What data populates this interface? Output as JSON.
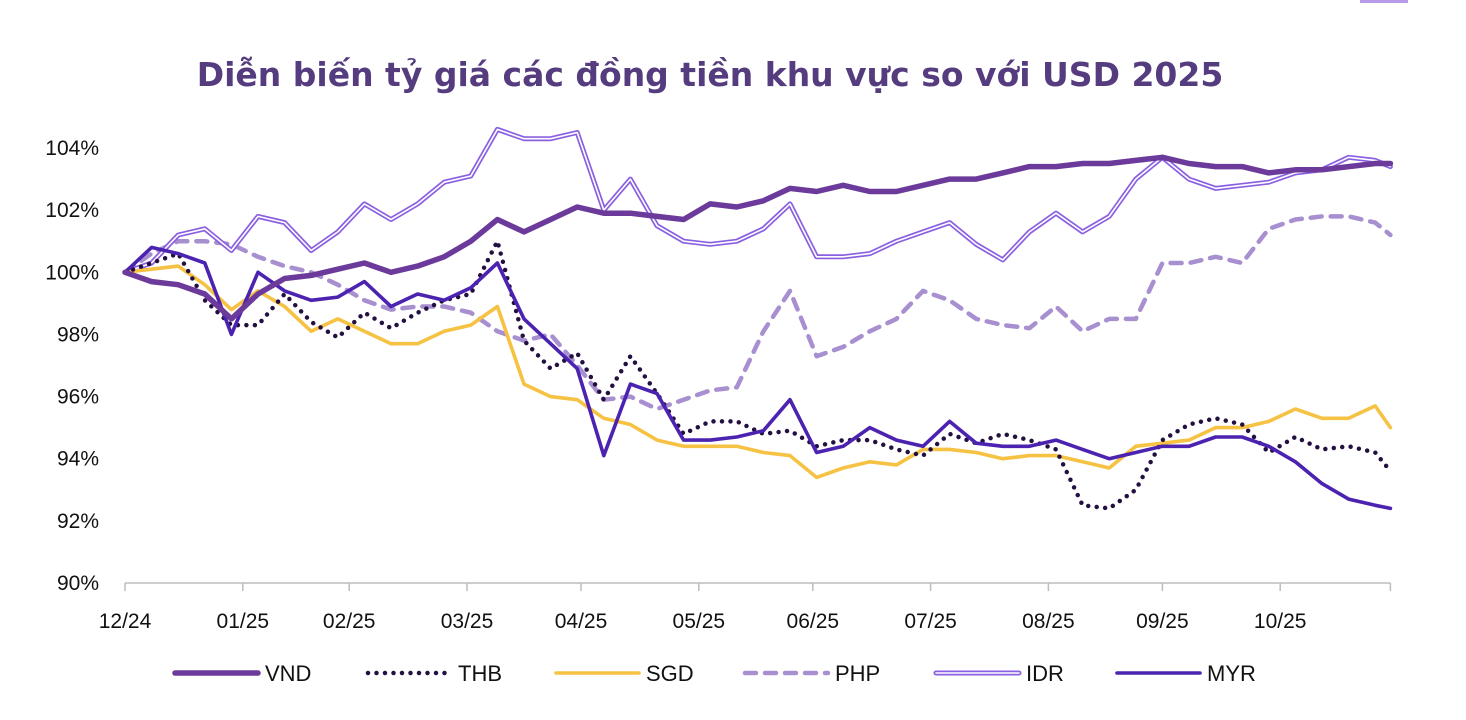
{
  "chart_data": {
    "type": "line",
    "title": "Diễn biến tỷ giá các đồng tiền khu vực so với USD 2025",
    "xlabel": "",
    "ylabel": "",
    "ylim": [
      90,
      104
    ],
    "yticks": [
      90,
      92,
      94,
      96,
      98,
      100,
      102,
      104
    ],
    "ytick_labels": [
      "90%",
      "92%",
      "94%",
      "96%",
      "98%",
      "100%",
      "102%",
      "104%"
    ],
    "xticks": [
      {
        "date": "2024-12-31",
        "label": "12/24"
      },
      {
        "date": "2025-01-31",
        "label": "01/25"
      },
      {
        "date": "2025-02-28",
        "label": "02/25"
      },
      {
        "date": "2025-03-31",
        "label": "03/25"
      },
      {
        "date": "2025-04-30",
        "label": "04/25"
      },
      {
        "date": "2025-05-31",
        "label": "05/25"
      },
      {
        "date": "2025-06-30",
        "label": "06/25"
      },
      {
        "date": "2025-07-31",
        "label": "07/25"
      },
      {
        "date": "2025-08-31",
        "label": "08/25"
      },
      {
        "date": "2025-09-30",
        "label": "09/25"
      },
      {
        "date": "2025-10-31",
        "label": "10/25"
      }
    ],
    "grid": false,
    "legend_position": "bottom",
    "x": [
      "2024-12-31",
      "2025-01-07",
      "2025-01-14",
      "2025-01-21",
      "2025-01-28",
      "2025-02-04",
      "2025-02-11",
      "2025-02-18",
      "2025-02-25",
      "2025-03-04",
      "2025-03-11",
      "2025-03-18",
      "2025-03-25",
      "2025-04-01",
      "2025-04-08",
      "2025-04-15",
      "2025-04-22",
      "2025-04-29",
      "2025-05-06",
      "2025-05-13",
      "2025-05-20",
      "2025-05-27",
      "2025-06-03",
      "2025-06-10",
      "2025-06-17",
      "2025-06-24",
      "2025-07-01",
      "2025-07-08",
      "2025-07-15",
      "2025-07-22",
      "2025-07-29",
      "2025-08-05",
      "2025-08-12",
      "2025-08-19",
      "2025-08-26",
      "2025-09-02",
      "2025-09-09",
      "2025-09-16",
      "2025-09-23",
      "2025-09-30",
      "2025-10-07",
      "2025-10-14",
      "2025-10-21",
      "2025-10-28",
      "2025-11-04",
      "2025-11-11",
      "2025-11-18",
      "2025-11-25",
      "2025-11-29"
    ],
    "series": [
      {
        "name": "PHP",
        "color": "#a78fd0",
        "style": "dashed",
        "values": [
          100.0,
          100.6,
          101.0,
          101.0,
          100.9,
          100.5,
          100.2,
          100.0,
          99.6,
          99.1,
          98.8,
          98.9,
          98.9,
          98.7,
          98.1,
          97.8,
          98.0,
          97.0,
          95.9,
          96.0,
          95.6,
          95.9,
          96.2,
          96.3,
          98.1,
          99.4,
          97.3,
          97.6,
          98.1,
          98.5,
          99.4,
          99.1,
          98.5,
          98.3,
          98.2,
          98.9,
          98.1,
          98.5,
          98.5,
          100.3,
          100.3,
          100.5,
          100.3,
          101.4,
          101.7,
          101.8,
          101.8,
          101.6,
          101.2
        ]
      },
      {
        "name": "IDR",
        "color": "#8a5fe0",
        "style": "double",
        "values": [
          100.0,
          100.3,
          101.2,
          101.4,
          100.7,
          101.8,
          101.6,
          100.7,
          101.3,
          102.2,
          101.7,
          102.2,
          102.9,
          103.1,
          104.6,
          104.3,
          104.3,
          104.5,
          102.0,
          103.0,
          101.5,
          101.0,
          100.9,
          101.0,
          101.4,
          102.2,
          100.5,
          100.5,
          100.6,
          101.0,
          101.3,
          101.6,
          100.9,
          100.4,
          101.3,
          101.9,
          101.3,
          101.8,
          103.0,
          103.7,
          103.0,
          102.7,
          102.8,
          102.9,
          103.2,
          103.3,
          103.7,
          103.6,
          103.4
        ]
      },
      {
        "name": "SGD",
        "color": "#f5c243",
        "style": "solid",
        "values": [
          100.0,
          100.1,
          100.2,
          99.6,
          98.8,
          99.4,
          98.9,
          98.1,
          98.5,
          98.1,
          97.7,
          97.7,
          98.1,
          98.3,
          98.9,
          96.4,
          96.0,
          95.9,
          95.3,
          95.1,
          94.6,
          94.4,
          94.4,
          94.4,
          94.2,
          94.1,
          93.4,
          93.7,
          93.9,
          93.8,
          94.3,
          94.3,
          94.2,
          94.0,
          94.1,
          94.1,
          93.9,
          93.7,
          94.4,
          94.5,
          94.6,
          95.0,
          95.0,
          95.2,
          95.6,
          95.3,
          95.3,
          95.7,
          95.0
        ]
      },
      {
        "name": "THB",
        "color": "#231040",
        "style": "dotted",
        "values": [
          100.0,
          100.3,
          100.6,
          99.1,
          98.3,
          98.3,
          99.3,
          98.4,
          97.9,
          98.7,
          98.2,
          98.7,
          99.1,
          99.3,
          101.0,
          97.8,
          96.9,
          97.4,
          95.9,
          97.3,
          96.1,
          94.8,
          95.2,
          95.2,
          94.8,
          94.9,
          94.4,
          94.6,
          94.6,
          94.3,
          94.1,
          94.8,
          94.5,
          94.8,
          94.6,
          94.3,
          92.5,
          92.4,
          93.0,
          94.6,
          95.1,
          95.3,
          95.1,
          94.2,
          94.7,
          94.3,
          94.4,
          94.2,
          93.6
        ]
      },
      {
        "name": "MYR",
        "color": "#4b23b0",
        "style": "solid",
        "values": [
          100.0,
          100.8,
          100.6,
          100.3,
          98.0,
          100.0,
          99.4,
          99.1,
          99.2,
          99.7,
          98.9,
          99.3,
          99.1,
          99.5,
          100.3,
          98.5,
          97.7,
          96.9,
          94.1,
          96.4,
          96.1,
          94.6,
          94.6,
          94.7,
          94.9,
          95.9,
          94.2,
          94.4,
          95.0,
          94.6,
          94.4,
          95.2,
          94.5,
          94.4,
          94.4,
          94.6,
          94.3,
          94.0,
          94.2,
          94.4,
          94.4,
          94.7,
          94.7,
          94.4,
          93.9,
          93.2,
          92.7,
          92.5,
          92.4
        ]
      },
      {
        "name": "VND",
        "color": "#6b3a9b",
        "style": "thick",
        "values": [
          100.0,
          99.7,
          99.6,
          99.3,
          98.5,
          99.3,
          99.8,
          99.9,
          100.1,
          100.3,
          100.0,
          100.2,
          100.5,
          101.0,
          101.7,
          101.3,
          101.7,
          102.1,
          101.9,
          101.9,
          101.8,
          101.7,
          102.2,
          102.1,
          102.3,
          102.7,
          102.6,
          102.8,
          102.6,
          102.6,
          102.8,
          103.0,
          103.0,
          103.2,
          103.4,
          103.4,
          103.5,
          103.5,
          103.6,
          103.7,
          103.5,
          103.4,
          103.4,
          103.2,
          103.3,
          103.3,
          103.4,
          103.5,
          103.5
        ]
      }
    ],
    "legend_order": [
      "VND",
      "THB",
      "SGD",
      "PHP",
      "IDR",
      "MYR"
    ]
  },
  "colors": {
    "title": "#553c7f",
    "axis": "#bdbdbd",
    "corner_accent": "#b79be8"
  }
}
